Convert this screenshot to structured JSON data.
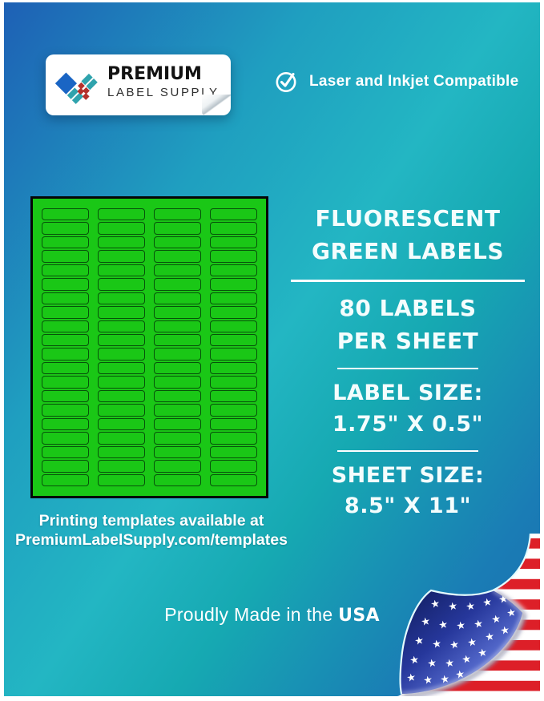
{
  "header": {
    "logo": {
      "line1": "PREMIUM",
      "line2": "LABEL SUPPLY"
    },
    "compatibility": {
      "prefix": "Laser and Inkjet ",
      "bold": "Compatible"
    }
  },
  "sheet_graphic": {
    "columns": 4,
    "rows": 20,
    "labels_total": 80,
    "sheet_color": "#1ac716",
    "label_outline_color": "#07520a"
  },
  "info_panel": {
    "title_line1": "FLUORESCENT",
    "title_line2": "GREEN LABELS",
    "count_line1": "80 LABELS",
    "count_line2": "PER SHEET",
    "label_size_heading": "LABEL SIZE:",
    "label_size_value": "1.75\" X 0.5\"",
    "sheet_size_heading": "SHEET SIZE:",
    "sheet_size_value": "8.5\" X 11\""
  },
  "templates_note": {
    "line1": "Printing templates available at",
    "line2": "PremiumLabelSupply.com/templates"
  },
  "footer": {
    "prefix": "Proudly Made in the ",
    "bold": "USA"
  },
  "colors": {
    "background_blue": "#1e60b5",
    "background_teal": "#23b6c3",
    "label_green": "#1ac716",
    "flag_red": "#dd1f28",
    "flag_star_blue": "#26379b",
    "logo_blue": "#1a65c4",
    "logo_teal": "#2fa3ad",
    "logo_red": "#b5312c"
  },
  "icons": {
    "check": "check-circle-icon",
    "logo": "diamond-logo-icon",
    "flag": "us-flag-page-curl-icon"
  }
}
